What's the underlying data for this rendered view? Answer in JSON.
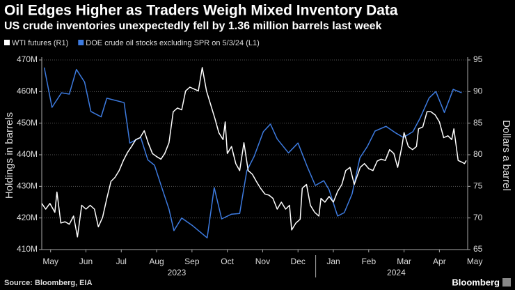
{
  "chart_data": {
    "type": "line",
    "title": "Oil Edges Higher as Traders Weigh Mixed Inventory Data",
    "subtitle": "US crude inventories unexpectedly fell by 1.36 million barrels last week",
    "ylabel": "Holdings in barrels",
    "y2label": "Dollars a barrel",
    "source": "Source: Bloomberg, EIA",
    "brand": "Bloomberg",
    "grid": true,
    "xlim": [
      0.25,
      12.3
    ],
    "xticks": [
      {
        "value": 0.5,
        "label": "May"
      },
      {
        "value": 1.5,
        "label": "Jun"
      },
      {
        "value": 2.5,
        "label": "Jul"
      },
      {
        "value": 3.5,
        "label": "Aug"
      },
      {
        "value": 4.5,
        "label": "Sep"
      },
      {
        "value": 5.5,
        "label": "Oct"
      },
      {
        "value": 6.5,
        "label": "Nov"
      },
      {
        "value": 7.5,
        "label": "Dec"
      },
      {
        "value": 8.5,
        "label": "Jan"
      },
      {
        "value": 9.5,
        "label": "Feb"
      },
      {
        "value": 10.5,
        "label": "Mar"
      },
      {
        "value": 11.5,
        "label": "Apr"
      },
      {
        "value": 12.5,
        "label": "May"
      }
    ],
    "x_group_labels": [
      {
        "value": 4.07,
        "label": "2023"
      },
      {
        "value": 10.28,
        "label": "2024"
      }
    ],
    "x_group_divider": 8,
    "ylim": [
      410,
      470
    ],
    "yticks": [
      {
        "value": 410,
        "label": "410M"
      },
      {
        "value": 420,
        "label": "420M"
      },
      {
        "value": 430,
        "label": "430M"
      },
      {
        "value": 440,
        "label": "440M"
      },
      {
        "value": 450,
        "label": "450M"
      },
      {
        "value": 460,
        "label": "460M"
      },
      {
        "value": 470,
        "label": "470M"
      }
    ],
    "y2lim": [
      65,
      95
    ],
    "y2ticks": [
      65,
      70,
      75,
      80,
      85,
      90,
      95
    ],
    "series": [
      {
        "name": "WTI futures (R1)",
        "color": "#ffffff",
        "axis": "y2",
        "x": [
          0.25,
          0.36,
          0.48,
          0.62,
          0.68,
          0.79,
          0.91,
          1.03,
          1.15,
          1.26,
          1.38,
          1.5,
          1.62,
          1.74,
          1.85,
          1.97,
          2.09,
          2.21,
          2.32,
          2.44,
          2.56,
          2.68,
          2.79,
          2.91,
          3.03,
          3.15,
          3.26,
          3.38,
          3.5,
          3.62,
          3.73,
          3.85,
          3.97,
          4.09,
          4.21,
          4.32,
          4.44,
          4.56,
          4.68,
          4.79,
          4.91,
          5.03,
          5.15,
          5.26,
          5.38,
          5.44,
          5.5,
          5.62,
          5.74,
          5.85,
          5.97,
          6.09,
          6.21,
          6.32,
          6.44,
          6.56,
          6.68,
          6.79,
          6.91,
          7.03,
          7.15,
          7.26,
          7.32,
          7.44,
          7.56,
          7.62,
          7.74,
          7.85,
          7.97,
          8.09,
          8.15,
          8.26,
          8.38,
          8.5,
          8.62,
          8.74,
          8.85,
          8.97,
          9.09,
          9.26,
          9.38,
          9.5,
          9.62,
          9.74,
          9.85,
          9.97,
          10.09,
          10.21,
          10.32,
          10.44,
          10.5,
          10.62,
          10.74,
          10.85,
          10.91,
          11.03,
          11.15,
          11.26,
          11.38,
          11.5,
          11.62,
          11.74,
          11.85,
          11.91,
          12.03,
          12.15,
          12.21,
          12.26
        ],
        "values": [
          72.3,
          71.4,
          72.3,
          70.9,
          74.1,
          69.2,
          69.4,
          69.0,
          70.3,
          67.0,
          72.0,
          71.4,
          72.0,
          71.4,
          68.6,
          70.1,
          73.1,
          75.8,
          76.4,
          77.5,
          79.1,
          80.4,
          81.3,
          82.4,
          82.7,
          83.8,
          81.9,
          80.2,
          79.7,
          79.3,
          80.2,
          81.9,
          86.8,
          87.4,
          87.1,
          90.1,
          90.7,
          90.4,
          90.1,
          93.8,
          90.1,
          87.9,
          85.7,
          83.5,
          82.4,
          85.2,
          80.2,
          81.3,
          78.6,
          77.5,
          81.9,
          77.5,
          76.9,
          75.8,
          74.7,
          73.8,
          73.6,
          73.1,
          71.4,
          72.5,
          71.4,
          72.0,
          68.1,
          69.2,
          69.8,
          74.7,
          75.3,
          72.0,
          70.9,
          70.3,
          73.1,
          72.5,
          73.4,
          72.5,
          74.2,
          75.3,
          77.5,
          78.0,
          75.3,
          78.0,
          78.6,
          77.8,
          77.5,
          79.0,
          79.3,
          79.1,
          80.8,
          80.2,
          78.0,
          81.3,
          83.5,
          81.3,
          80.8,
          81.3,
          84.1,
          84.4,
          86.8,
          86.8,
          86.3,
          85.2,
          82.7,
          83.0,
          82.4,
          84.1,
          79.1,
          78.8,
          78.6,
          79.1
        ]
      },
      {
        "name": "DOE crude oil stocks excluding SPR on 5/3/24 (L1)",
        "color": "#3d7be0",
        "x": [
          0.32,
          0.54,
          0.81,
          1.03,
          1.23,
          1.46,
          1.64,
          1.93,
          2.09,
          2.58,
          2.74,
          3.05,
          3.25,
          3.44,
          3.64,
          3.85,
          3.99,
          4.21,
          4.5,
          4.93,
          5.13,
          5.34,
          5.62,
          5.85,
          6.05,
          6.26,
          6.52,
          6.72,
          6.91,
          7.23,
          7.5,
          7.77,
          7.99,
          8.23,
          8.38,
          8.62,
          8.81,
          9.03,
          9.25,
          9.46,
          9.68,
          9.99,
          10.25,
          10.48,
          10.75,
          10.95,
          11.21,
          11.4,
          11.64,
          11.89,
          12.13
        ],
        "values": [
          467.6,
          455.0,
          459.6,
          459.2,
          467.0,
          463.0,
          453.7,
          452.0,
          457.9,
          456.5,
          443.7,
          445.5,
          438.4,
          436.7,
          429.8,
          422.8,
          416.0,
          420.0,
          417.7,
          413.7,
          429.6,
          419.7,
          421.2,
          421.4,
          434.9,
          439.5,
          447.3,
          449.7,
          445.0,
          440.6,
          443.7,
          436.0,
          430.3,
          431.8,
          428.9,
          420.6,
          421.7,
          427.6,
          439.0,
          442.6,
          447.5,
          449.0,
          447.0,
          445.5,
          447.3,
          451.5,
          458.0,
          460.0,
          453.4,
          460.7,
          459.6
        ]
      }
    ]
  }
}
